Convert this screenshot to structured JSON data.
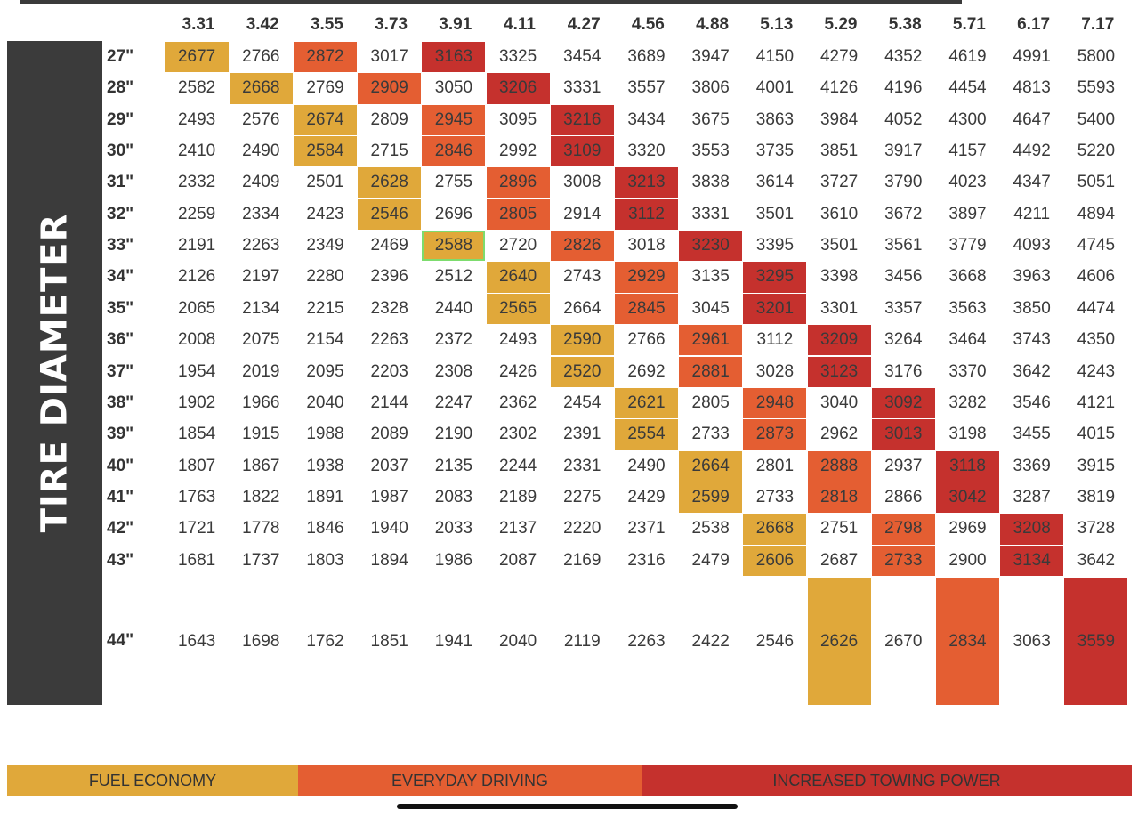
{
  "side_label": "TIRE DIAMETER",
  "colors": {
    "fuel_economy": "#e0a83a",
    "everyday_driving": "#e45e32",
    "increased_towing": "#c5312d"
  },
  "chart_data": {
    "type": "table",
    "title": "",
    "row_axis_label": "TIRE DIAMETER",
    "columns": [
      "3.31",
      "3.42",
      "3.55",
      "3.73",
      "3.91",
      "4.11",
      "4.27",
      "4.56",
      "4.88",
      "5.13",
      "5.29",
      "5.38",
      "5.71",
      "6.17",
      "7.17"
    ],
    "rows": [
      {
        "label": "27\"",
        "values": [
          2677,
          2766,
          2872,
          3017,
          3163,
          3325,
          3454,
          3689,
          3947,
          4150,
          4279,
          4352,
          4619,
          4991,
          5800
        ],
        "highlight": {
          "econ": [
            0
          ],
          "everyday": [
            2
          ],
          "towing": [
            4
          ]
        }
      },
      {
        "label": "28\"",
        "values": [
          2582,
          2668,
          2769,
          2909,
          3050,
          3206,
          3331,
          3557,
          3806,
          4001,
          4126,
          4196,
          4454,
          4813,
          5593
        ],
        "highlight": {
          "econ": [
            1
          ],
          "everyday": [
            3
          ],
          "towing": [
            5
          ]
        }
      },
      {
        "label": "29\"",
        "values": [
          2493,
          2576,
          2674,
          2809,
          2945,
          3095,
          3216,
          3434,
          3675,
          3863,
          3984,
          4052,
          4300,
          4647,
          5400
        ],
        "highlight": {
          "econ": [
            2
          ],
          "everyday": [
            4
          ],
          "towing": [
            6
          ]
        }
      },
      {
        "label": "30\"",
        "values": [
          2410,
          2490,
          2584,
          2715,
          2846,
          2992,
          3109,
          3320,
          3553,
          3735,
          3851,
          3917,
          4157,
          4492,
          5220
        ],
        "highlight": {
          "econ": [
            2
          ],
          "everyday": [
            4
          ],
          "towing": [
            6
          ]
        }
      },
      {
        "label": "31\"",
        "values": [
          2332,
          2409,
          2501,
          2628,
          2755,
          2896,
          3008,
          3213,
          3838,
          3614,
          3727,
          3790,
          4023,
          4347,
          5051
        ],
        "highlight": {
          "econ": [
            3
          ],
          "everyday": [
            5
          ],
          "towing": [
            7
          ]
        }
      },
      {
        "label": "32\"",
        "values": [
          2259,
          2334,
          2423,
          2546,
          2696,
          2805,
          2914,
          3112,
          3331,
          3501,
          3610,
          3672,
          3897,
          4211,
          4894
        ],
        "highlight": {
          "econ": [
            3
          ],
          "everyday": [
            5
          ],
          "towing": [
            7
          ]
        }
      },
      {
        "label": "33\"",
        "values": [
          2191,
          2263,
          2349,
          2469,
          2588,
          2720,
          2826,
          3018,
          3230,
          3395,
          3501,
          3561,
          3779,
          4093,
          4745
        ],
        "highlight": {
          "econ": [
            4
          ],
          "everyday": [
            6
          ],
          "towing": [
            8
          ]
        }
      },
      {
        "label": "34\"",
        "values": [
          2126,
          2197,
          2280,
          2396,
          2512,
          2640,
          2743,
          2929,
          3135,
          3295,
          3398,
          3456,
          3668,
          3963,
          4606
        ],
        "highlight": {
          "econ": [
            5
          ],
          "everyday": [
            7
          ],
          "towing": [
            9
          ]
        }
      },
      {
        "label": "35\"",
        "values": [
          2065,
          2134,
          2215,
          2328,
          2440,
          2565,
          2664,
          2845,
          3045,
          3201,
          3301,
          3357,
          3563,
          3850,
          4474
        ],
        "highlight": {
          "econ": [
            5
          ],
          "everyday": [
            7
          ],
          "towing": [
            9
          ]
        }
      },
      {
        "label": "36\"",
        "values": [
          2008,
          2075,
          2154,
          2263,
          2372,
          2493,
          2590,
          2766,
          2961,
          3112,
          3209,
          3264,
          3464,
          3743,
          4350
        ],
        "highlight": {
          "econ": [
            6
          ],
          "everyday": [
            8
          ],
          "towing": [
            10
          ]
        }
      },
      {
        "label": "37\"",
        "values": [
          1954,
          2019,
          2095,
          2203,
          2308,
          2426,
          2520,
          2692,
          2881,
          3028,
          3123,
          3176,
          3370,
          3642,
          4243
        ],
        "highlight": {
          "econ": [
            6
          ],
          "everyday": [
            8
          ],
          "towing": [
            10
          ]
        }
      },
      {
        "label": "38\"",
        "values": [
          1902,
          1966,
          2040,
          2144,
          2247,
          2362,
          2454,
          2621,
          2805,
          2948,
          3040,
          3092,
          3282,
          3546,
          4121
        ],
        "highlight": {
          "econ": [
            7
          ],
          "everyday": [
            9
          ],
          "towing": [
            11
          ]
        }
      },
      {
        "label": "39\"",
        "values": [
          1854,
          1915,
          1988,
          2089,
          2190,
          2302,
          2391,
          2554,
          2733,
          2873,
          2962,
          3013,
          3198,
          3455,
          4015
        ],
        "highlight": {
          "econ": [
            7
          ],
          "everyday": [
            9
          ],
          "towing": [
            11
          ]
        }
      },
      {
        "label": "40\"",
        "values": [
          1807,
          1867,
          1938,
          2037,
          2135,
          2244,
          2331,
          2490,
          2664,
          2801,
          2888,
          2937,
          3118,
          3369,
          3915
        ],
        "highlight": {
          "econ": [
            8
          ],
          "everyday": [
            10
          ],
          "towing": [
            12
          ]
        }
      },
      {
        "label": "41\"",
        "values": [
          1763,
          1822,
          1891,
          1987,
          2083,
          2189,
          2275,
          2429,
          2599,
          2733,
          2818,
          2866,
          3042,
          3287,
          3819
        ],
        "highlight": {
          "econ": [
            8
          ],
          "everyday": [
            10
          ],
          "towing": [
            12
          ]
        }
      },
      {
        "label": "42\"",
        "values": [
          1721,
          1778,
          1846,
          1940,
          2033,
          2137,
          2220,
          2371,
          2538,
          2668,
          2751,
          2798,
          2969,
          3208,
          3728
        ],
        "highlight": {
          "econ": [
            9
          ],
          "everyday": [
            11
          ],
          "towing": [
            13
          ]
        }
      },
      {
        "label": "43\"",
        "values": [
          1681,
          1737,
          1803,
          1894,
          1986,
          2087,
          2169,
          2316,
          2479,
          2606,
          2687,
          2733,
          2900,
          3134,
          3642
        ],
        "highlight": {
          "econ": [
            9
          ],
          "everyday": [
            11
          ],
          "towing": [
            13
          ]
        }
      },
      {
        "label": "44\"",
        "values": [
          1643,
          1698,
          1762,
          1851,
          1941,
          2040,
          2119,
          2263,
          2422,
          2546,
          2626,
          2670,
          2834,
          3063,
          3559
        ],
        "highlight": {
          "econ": [
            10
          ],
          "everyday": [
            12
          ],
          "towing": [
            14
          ]
        }
      }
    ],
    "selected_cell": {
      "row": "33\"",
      "column": "3.91",
      "value": 2588
    },
    "legend": [
      {
        "label": "FUEL ECONOMY",
        "category": "econ"
      },
      {
        "label": "EVERYDAY DRIVING",
        "category": "everyday"
      },
      {
        "label": "INCREASED TOWING POWER",
        "category": "towing"
      }
    ]
  }
}
